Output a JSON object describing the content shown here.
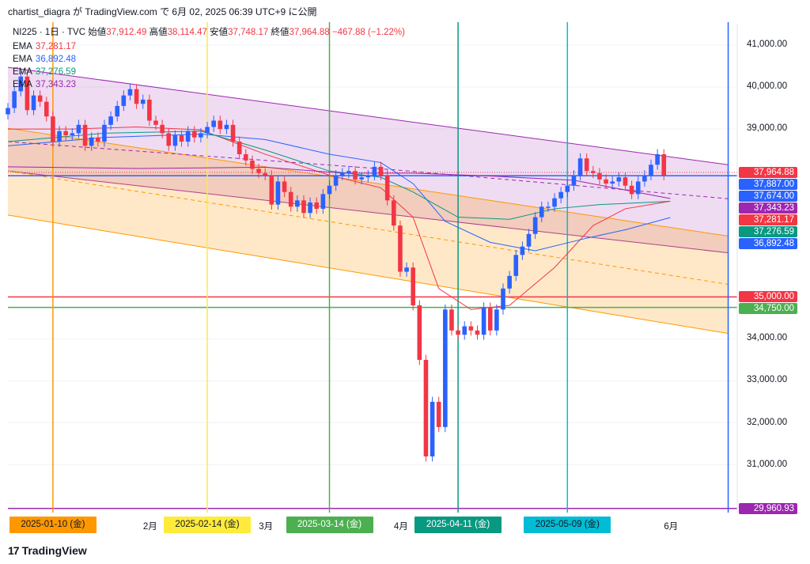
{
  "header": {
    "publish_line": "chartist_diagra が TradingView.com で 6月 02, 2025 06:39 UTC+9 に公開"
  },
  "legend": {
    "symbol": "NI225 · 1日 · TVC",
    "open_label": "始値",
    "open": "37,912.49",
    "high_label": "高値",
    "high": "38,114.47",
    "low_label": "安値",
    "low": "37,748.17",
    "close_label": "終値",
    "close": "37,964.88",
    "change": "−467.88 (−1.22%)",
    "ema": [
      {
        "label": "EMA",
        "value": "37,281.17",
        "color": "#f23645"
      },
      {
        "label": "EMA",
        "value": "36,892.48",
        "color": "#2962ff"
      },
      {
        "label": "EMA",
        "value": "37,276.59",
        "color": "#089981"
      },
      {
        "label": "EMA",
        "value": "37,343.23",
        "color": "#9c27b0"
      }
    ]
  },
  "footer": {
    "logo_text": "TradingView"
  },
  "chart_data": {
    "type": "candlestick",
    "y_range": [
      29800,
      41700
    ],
    "y_ticks": [
      {
        "label": "41,000.00",
        "value": 41000
      },
      {
        "label": "40,000.00",
        "value": 40000
      },
      {
        "label": "39,000.00",
        "value": 39000
      },
      {
        "label": "34,000.00",
        "value": 34000
      },
      {
        "label": "33,000.00",
        "value": 33000
      },
      {
        "label": "32,000.00",
        "value": 32000
      },
      {
        "label": "31,000.00",
        "value": 31000
      }
    ],
    "month_labels": [
      {
        "label": "2月",
        "index": 22
      },
      {
        "label": "3月",
        "index": 40
      },
      {
        "label": "4月",
        "index": 61
      },
      {
        "label": "6月",
        "index": 103
      }
    ],
    "date_labels": [
      {
        "label": "2025-01-10 (金)",
        "index": 7,
        "bg": "#ff9800",
        "fg": "#131722"
      },
      {
        "label": "2025-02-14 (金)",
        "index": 31,
        "bg": "#ffeb3b",
        "fg": "#131722"
      },
      {
        "label": "2025-03-14 (金)",
        "index": 50,
        "bg": "#4caf50",
        "fg": "#ffffff"
      },
      {
        "label": "2025-04-11 (金)",
        "index": 70,
        "bg": "#089981",
        "fg": "#ffffff"
      },
      {
        "label": "2025-05-09 (金)",
        "index": 87,
        "bg": "#00bcd4",
        "fg": "#131722"
      }
    ],
    "vertical_lines": [
      {
        "index": 7,
        "color": "#ff9800"
      },
      {
        "index": 31,
        "color": "#ffeb3b"
      },
      {
        "index": 50,
        "color": "#4caf50"
      },
      {
        "index": 70,
        "color": "#089981"
      },
      {
        "index": 87,
        "color": "#00bcd4"
      },
      {
        "index": 112,
        "color": "#2962ff"
      }
    ],
    "horizontal_lines": [
      {
        "value": 35000,
        "color": "#f23645"
      },
      {
        "value": 34750,
        "color": "#4caf50"
      },
      {
        "value": 29960.93,
        "color": "#9c27b0"
      },
      {
        "value": 37887,
        "color": "#2962ff"
      }
    ],
    "channels": [
      {
        "color": "#9c27b0",
        "fill": "rgba(156,39,176,0.16)",
        "upper": [
          [
            0,
            40470
          ],
          [
            112,
            38150
          ]
        ],
        "lower": [
          [
            0,
            38000
          ],
          [
            112,
            36050
          ]
        ]
      },
      {
        "color": "#ff9800",
        "fill": "rgba(255,152,0,0.22)",
        "upper": [
          [
            0,
            39020
          ],
          [
            112,
            36450
          ]
        ],
        "lower": [
          [
            0,
            36950
          ],
          [
            112,
            34130
          ]
        ]
      }
    ],
    "price_labels": [
      {
        "text": "37,964.88",
        "value": 37964.88,
        "color": "#f23645"
      },
      {
        "text": "37,887.00",
        "value": 37887,
        "color": "#2962ff"
      },
      {
        "text": "37,674.00",
        "value": 37674,
        "color": "#2962ff"
      },
      {
        "text": "37,343.23",
        "value": 37343.23,
        "color": "#9c27b0"
      },
      {
        "text": "37,281.17",
        "value": 37281.17,
        "color": "#f23645"
      },
      {
        "text": "37,276.59",
        "value": 37276.59,
        "color": "#089981"
      },
      {
        "text": "36,892.48",
        "value": 36892.48,
        "color": "#2962ff"
      },
      {
        "text": "35,000.00",
        "value": 35000,
        "color": "#f23645"
      },
      {
        "text": "34,750.00",
        "value": 34750,
        "color": "#4caf50"
      },
      {
        "text": "29,960.93",
        "value": 29960.93,
        "color": "#9c27b0"
      }
    ],
    "closes": [
      39500,
      39900,
      40250,
      39450,
      39800,
      39650,
      39300,
      38700,
      38950,
      38850,
      38900,
      39100,
      38600,
      38800,
      38700,
      39100,
      39300,
      39550,
      39800,
      39950,
      39600,
      39700,
      39200,
      39100,
      38900,
      38600,
      38850,
      38700,
      38950,
      38800,
      38900,
      39050,
      39200,
      39000,
      39100,
      38700,
      38400,
      38250,
      38050,
      37950,
      37900,
      37200,
      37750,
      37500,
      37150,
      37300,
      37000,
      37250,
      37100,
      37450,
      37650,
      37900,
      37950,
      38000,
      37800,
      37850,
      37900,
      38100,
      37900,
      37300,
      36700,
      35600,
      35700,
      34800,
      33500,
      31200,
      32500,
      31900,
      34700,
      34200,
      34100,
      34300,
      34200,
      34100,
      34750,
      34200,
      34700,
      35200,
      35500,
      36000,
      36200,
      36500,
      36900,
      37150,
      37150,
      37350,
      37500,
      37650,
      37900,
      38300,
      38000,
      37950,
      37800,
      37700,
      37750,
      37850,
      37650,
      37450,
      37750,
      37900,
      38150,
      38400,
      37900
    ],
    "emas": [
      {
        "color": "#f23645",
        "points": [
          [
            0,
            39000
          ],
          [
            10,
            39000
          ],
          [
            20,
            39050
          ],
          [
            30,
            38980
          ],
          [
            40,
            38400
          ],
          [
            50,
            37900
          ],
          [
            58,
            37600
          ],
          [
            63,
            36900
          ],
          [
            67,
            35200
          ],
          [
            72,
            34700
          ],
          [
            78,
            34800
          ],
          [
            85,
            35700
          ],
          [
            91,
            36700
          ],
          [
            96,
            37100
          ],
          [
            103,
            37281
          ]
        ]
      },
      {
        "color": "#2962ff",
        "points": [
          [
            0,
            38600
          ],
          [
            15,
            38800
          ],
          [
            30,
            38880
          ],
          [
            40,
            38750
          ],
          [
            50,
            38400
          ],
          [
            58,
            38200
          ],
          [
            63,
            37700
          ],
          [
            68,
            36800
          ],
          [
            75,
            36300
          ],
          [
            82,
            36100
          ],
          [
            90,
            36400
          ],
          [
            96,
            36600
          ],
          [
            103,
            36892
          ]
        ]
      },
      {
        "color": "#089981",
        "points": [
          [
            0,
            38700
          ],
          [
            15,
            38900
          ],
          [
            30,
            38950
          ],
          [
            40,
            38500
          ],
          [
            50,
            38000
          ],
          [
            58,
            37850
          ],
          [
            63,
            37500
          ],
          [
            70,
            36900
          ],
          [
            78,
            36850
          ],
          [
            85,
            37100
          ],
          [
            92,
            37200
          ],
          [
            103,
            37277
          ]
        ]
      },
      {
        "color": "#9c27b0",
        "points": [
          [
            0,
            38100
          ],
          [
            20,
            38060
          ],
          [
            40,
            38090
          ],
          [
            52,
            37950
          ],
          [
            63,
            37950
          ],
          [
            75,
            37880
          ],
          [
            88,
            37780
          ],
          [
            103,
            37343
          ]
        ]
      }
    ],
    "poc_line": {
      "color": "#9c27b0",
      "points": [
        [
          0,
          38700
        ],
        [
          60,
          38030
        ],
        [
          112,
          37340
        ]
      ]
    },
    "orange_mid": {
      "color": "#ff9800",
      "points": [
        [
          0,
          38000
        ],
        [
          112,
          35300
        ]
      ]
    }
  }
}
